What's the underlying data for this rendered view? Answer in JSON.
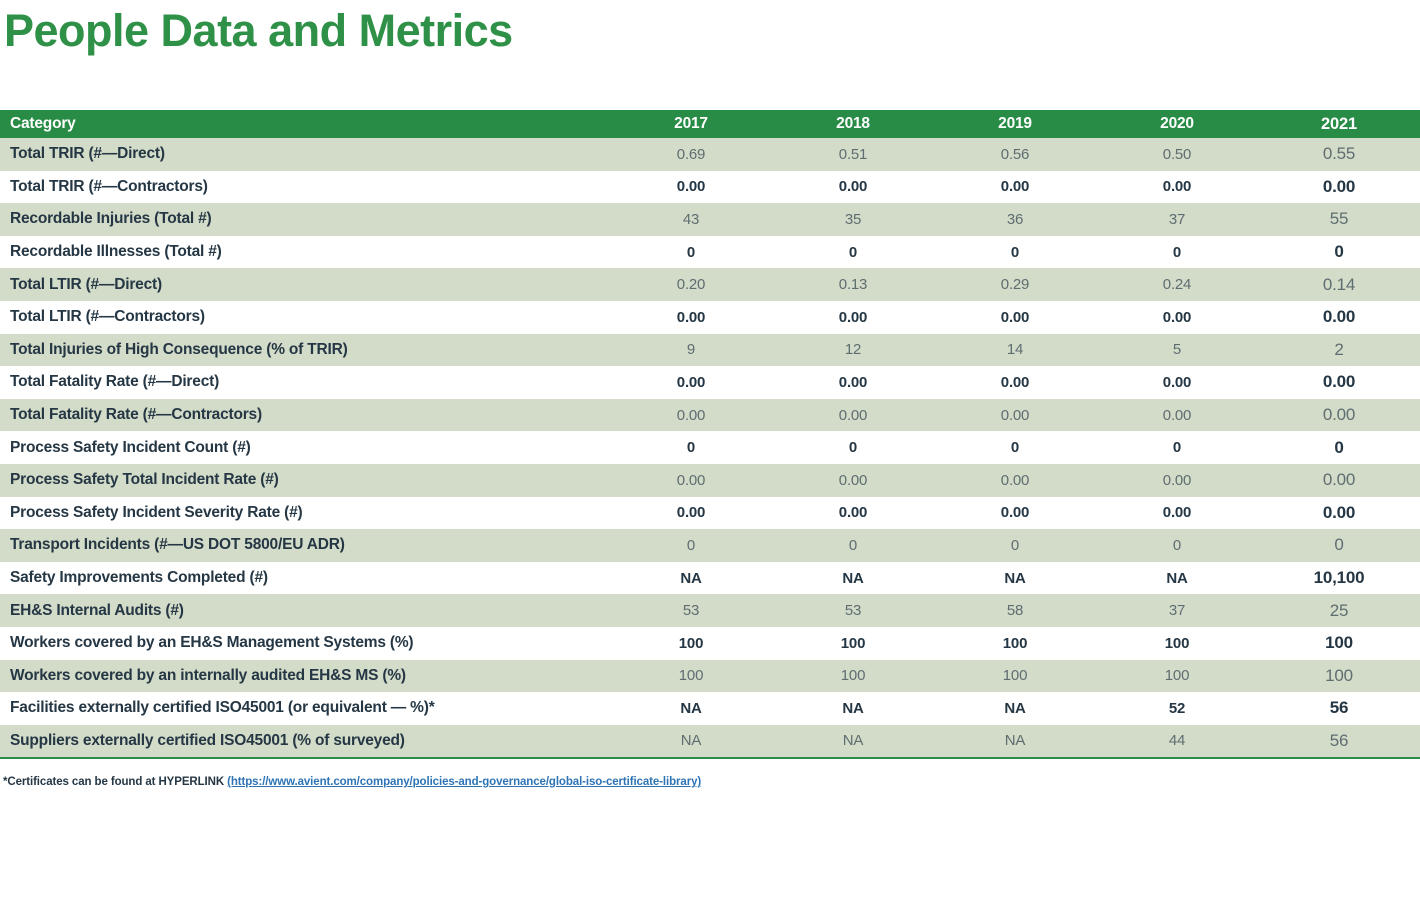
{
  "title": "People Data and Metrics",
  "table": {
    "header": {
      "category": "Category",
      "years": [
        "2017",
        "2018",
        "2019",
        "2020",
        "2021"
      ]
    },
    "rows": [
      {
        "category": "Total TRIR (#—Direct)",
        "values": [
          "0.69",
          "0.51",
          "0.56",
          "0.50",
          "0.55"
        ]
      },
      {
        "category": "Total TRIR (#—Contractors)",
        "values": [
          "0.00",
          "0.00",
          "0.00",
          "0.00",
          "0.00"
        ]
      },
      {
        "category": "Recordable Injuries (Total #)",
        "values": [
          "43",
          "35",
          "36",
          "37",
          "55"
        ]
      },
      {
        "category": "Recordable Illnesses (Total #)",
        "values": [
          "0",
          "0",
          "0",
          "0",
          "0"
        ]
      },
      {
        "category": "Total LTIR (#—Direct)",
        "values": [
          "0.20",
          "0.13",
          "0.29",
          "0.24",
          "0.14"
        ]
      },
      {
        "category": "Total LTIR (#—Contractors)",
        "values": [
          "0.00",
          "0.00",
          "0.00",
          "0.00",
          "0.00"
        ]
      },
      {
        "category": "Total Injuries of High Consequence (% of TRIR)",
        "values": [
          "9",
          "12",
          "14",
          "5",
          "2"
        ]
      },
      {
        "category": "Total Fatality Rate (#—Direct)",
        "values": [
          "0.00",
          "0.00",
          "0.00",
          "0.00",
          "0.00"
        ]
      },
      {
        "category": "Total Fatality Rate (#—Contractors)",
        "values": [
          "0.00",
          "0.00",
          "0.00",
          "0.00",
          "0.00"
        ]
      },
      {
        "category": "Process Safety Incident Count (#)",
        "values": [
          "0",
          "0",
          "0",
          "0",
          "0"
        ]
      },
      {
        "category": "Process Safety Total Incident Rate (#)",
        "values": [
          "0.00",
          "0.00",
          "0.00",
          "0.00",
          "0.00"
        ]
      },
      {
        "category": "Process Safety Incident Severity Rate (#)",
        "values": [
          "0.00",
          "0.00",
          "0.00",
          "0.00",
          "0.00"
        ]
      },
      {
        "category": "Transport Incidents (#—US DOT 5800/EU ADR)",
        "values": [
          "0",
          "0",
          "0",
          "0",
          "0"
        ]
      },
      {
        "category": "Safety Improvements Completed (#)",
        "values": [
          "NA",
          "NA",
          "NA",
          "NA",
          "10,100"
        ]
      },
      {
        "category": "EH&S Internal Audits (#)",
        "values": [
          "53",
          "53",
          "58",
          "37",
          "25"
        ]
      },
      {
        "category": "Workers covered by an EH&S Management Systems (%)",
        "values": [
          "100",
          "100",
          "100",
          "100",
          "100"
        ]
      },
      {
        "category": "Workers covered by an internally audited EH&S MS (%)",
        "values": [
          "100",
          "100",
          "100",
          "100",
          "100"
        ]
      },
      {
        "category": "Facilities externally certified ISO45001 (or equivalent — %)*",
        "values": [
          "NA",
          "NA",
          "NA",
          "52",
          "56"
        ]
      },
      {
        "category": "Suppliers externally certified ISO45001 (% of surveyed)",
        "values": [
          "NA",
          "NA",
          "NA",
          "44",
          "56"
        ]
      }
    ]
  },
  "footnote": {
    "prefix": "*Certificates can be found at HYPERLINK ",
    "link_text": "(https://www.avient.com/company/policies-and-governance/global-iso-certificate-library)"
  },
  "colors": {
    "title_green": "#2e9147",
    "header_green": "#288c46",
    "row_light_green": "#d3dbc9",
    "row_white": "#ffffff",
    "text_dark": "#253744",
    "value_gray": "#5e6e70",
    "link_blue": "#2e74b5",
    "table_bottom_border_green": "#2a8c47"
  }
}
